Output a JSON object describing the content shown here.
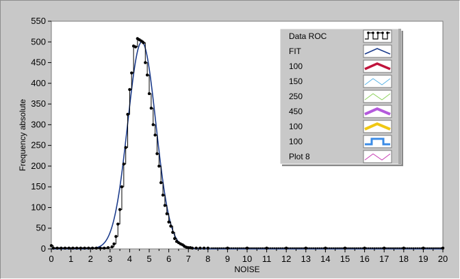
{
  "chart_data": {
    "type": "line",
    "xlabel": "NOISE",
    "ylabel": "Frequency absolute",
    "xlim": [
      0,
      20
    ],
    "ylim": [
      0,
      550
    ],
    "x_ticks": [
      0,
      1,
      2,
      3,
      4,
      5,
      6,
      7,
      8,
      9,
      10,
      11,
      12,
      13,
      14,
      15,
      16,
      17,
      18,
      19,
      20
    ],
    "y_ticks": [
      0,
      50,
      100,
      150,
      200,
      250,
      300,
      350,
      400,
      450,
      500,
      550
    ],
    "grid": false,
    "legend_position": "top-right",
    "series": [
      {
        "name": "Data ROC",
        "color": "#000000",
        "style": "step-with-dots",
        "x": [
          0.0,
          0.1,
          0.3,
          0.5,
          0.7,
          0.9,
          1.1,
          1.3,
          1.5,
          1.7,
          1.9,
          2.1,
          2.3,
          2.5,
          2.7,
          2.9,
          3.1,
          3.2,
          3.3,
          3.4,
          3.5,
          3.6,
          3.7,
          3.8,
          3.9,
          4.0,
          4.1,
          4.2,
          4.3,
          4.4,
          4.5,
          4.6,
          4.7,
          4.8,
          4.9,
          5.0,
          5.1,
          5.2,
          5.3,
          5.4,
          5.5,
          5.6,
          5.7,
          5.8,
          5.9,
          6.0,
          6.1,
          6.2,
          6.3,
          6.4,
          6.5,
          6.6,
          6.7,
          6.8,
          6.9,
          7.0,
          7.1,
          7.2,
          7.4,
          7.6,
          7.8,
          8.0,
          9.0,
          10.0,
          11.0,
          12.0,
          13.0,
          14.0,
          15.0,
          16.0,
          17.0,
          18.0,
          19.0,
          20.0
        ],
        "y": [
          8,
          2,
          2,
          2,
          2,
          2,
          2,
          2,
          2,
          2,
          2,
          2,
          2,
          2,
          2,
          3,
          5,
          12,
          30,
          60,
          95,
          150,
          205,
          245,
          325,
          385,
          425,
          490,
          488,
          508,
          505,
          502,
          498,
          450,
          420,
          375,
          340,
          300,
          275,
          230,
          200,
          160,
          130,
          105,
          85,
          65,
          55,
          40,
          25,
          18,
          15,
          12,
          10,
          6,
          4,
          3,
          3,
          2,
          2,
          2,
          2,
          2,
          2,
          2,
          2,
          2,
          2,
          2,
          2,
          2,
          2,
          2,
          2,
          2
        ]
      },
      {
        "name": "FIT",
        "color": "#1c3c8c",
        "style": "line",
        "mu": 4.62,
        "sigma": 0.72,
        "amplitude": 500
      },
      {
        "name": "100",
        "color": "#c0143c",
        "style": "line"
      },
      {
        "name": "150",
        "color": "#5ab4e6",
        "style": "line"
      },
      {
        "name": "250",
        "color": "#8cd25a",
        "style": "line"
      },
      {
        "name": "450",
        "color": "#b45adc",
        "style": "line"
      },
      {
        "name": "100",
        "color": "#f0c814",
        "style": "line"
      },
      {
        "name": "100",
        "color": "#3c8ce6",
        "style": "step"
      },
      {
        "name": "Plot 8",
        "color": "#c83cb4",
        "style": "line"
      }
    ]
  }
}
